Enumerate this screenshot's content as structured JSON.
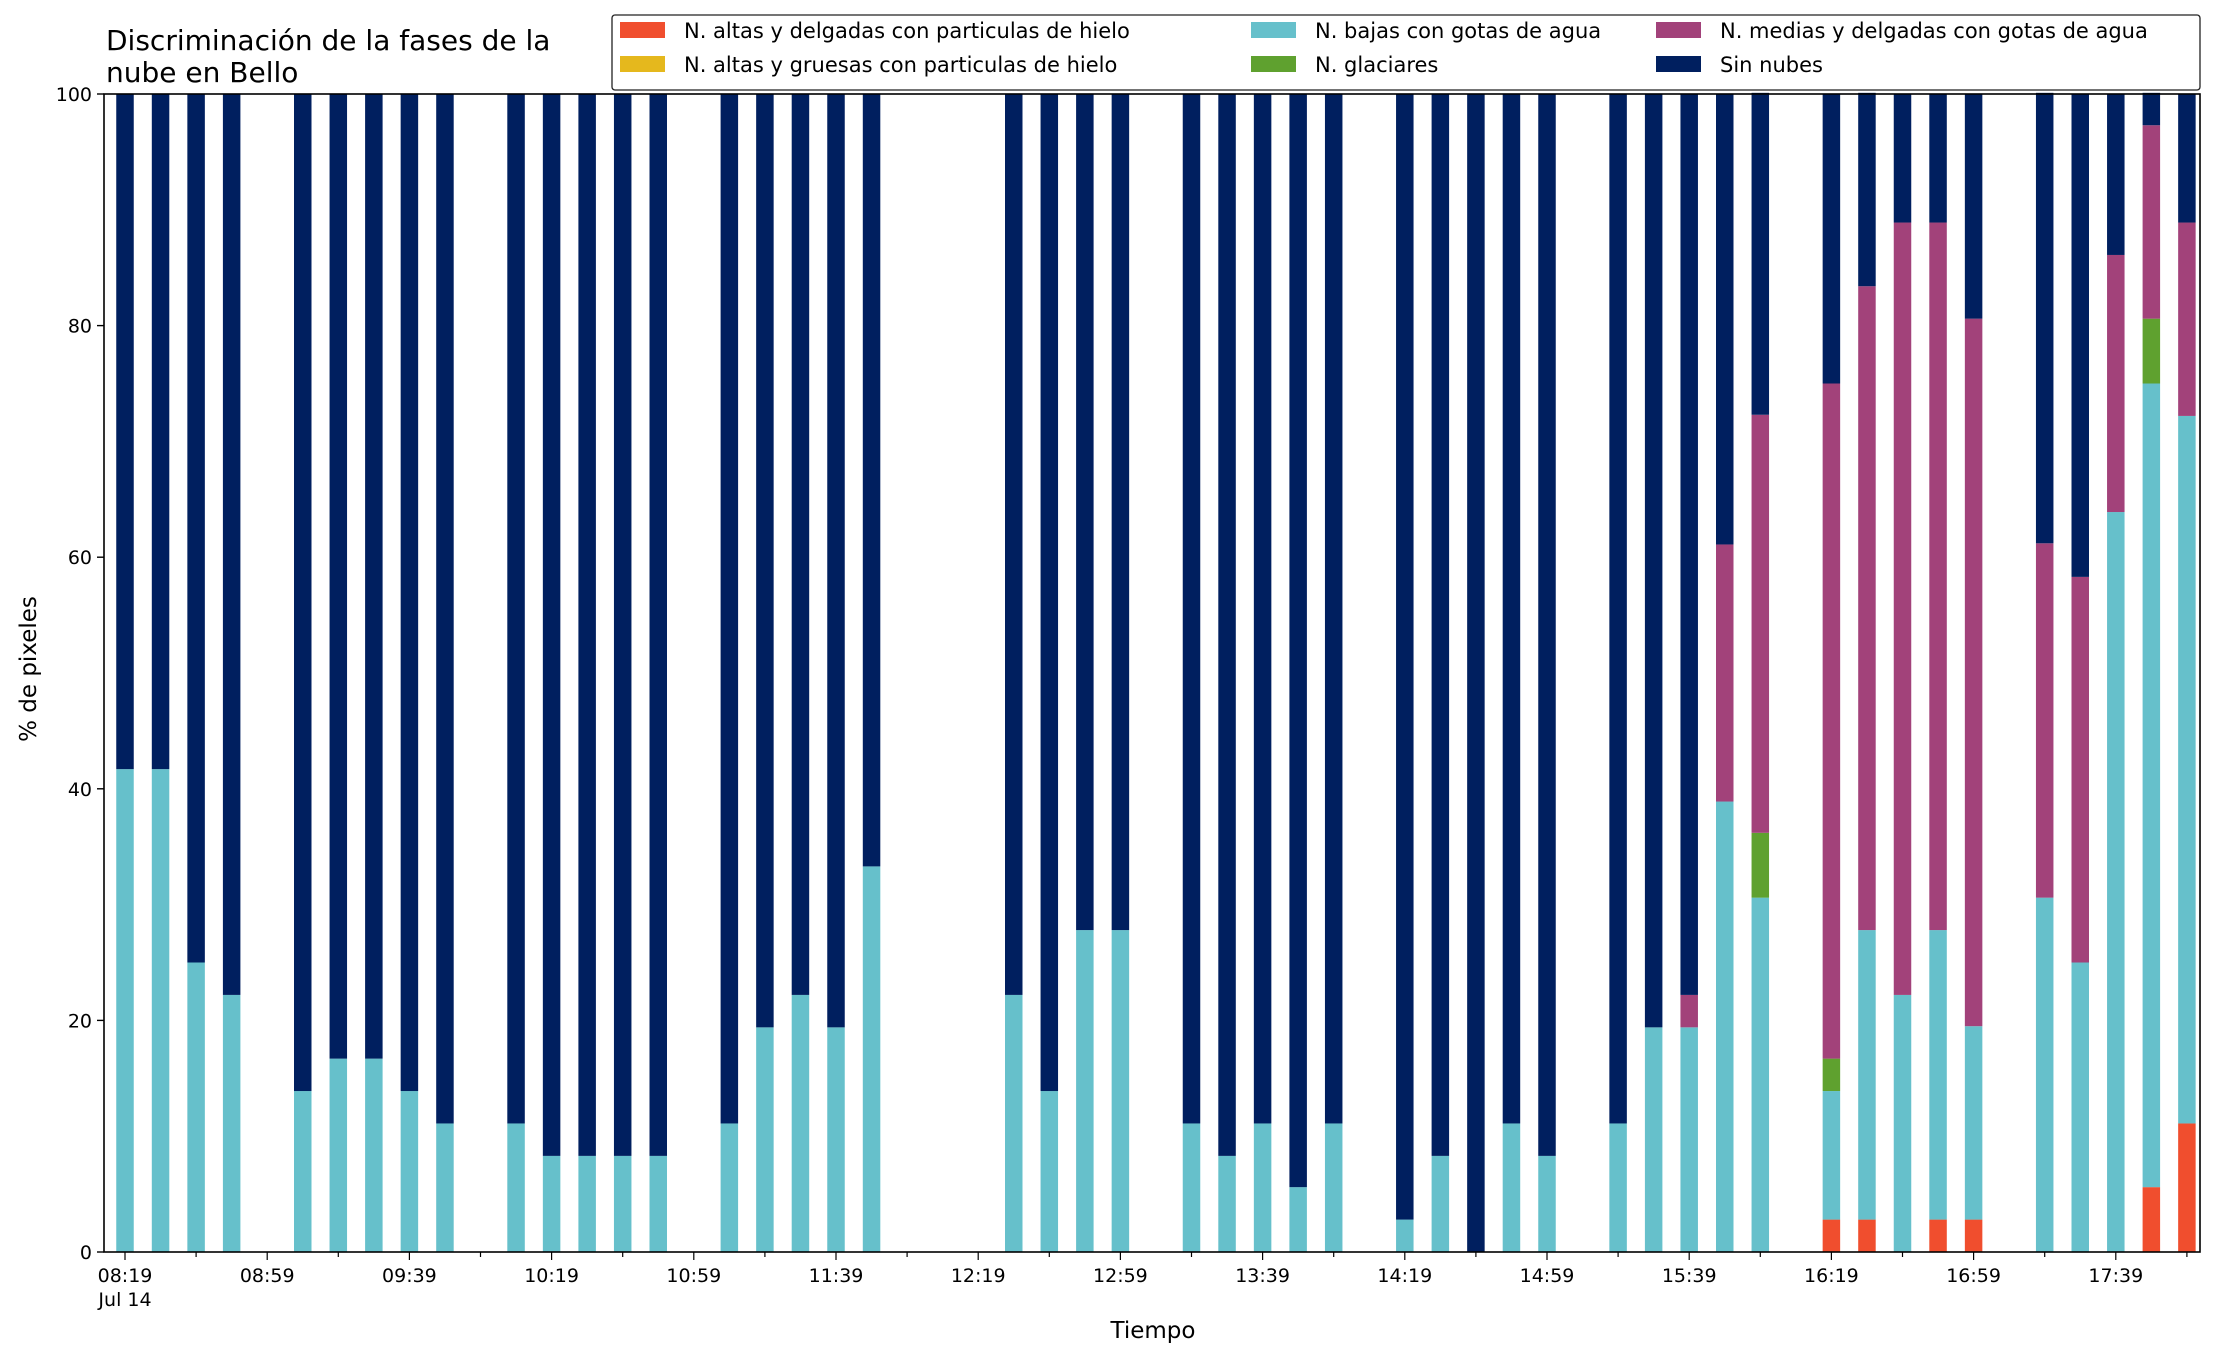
{
  "chart_data": {
    "type": "bar",
    "stacked": true,
    "title": "Discriminación de la fases de la\nnube en Bello",
    "xlabel": "Tiempo",
    "ylabel": "% de pixeles",
    "ylim": [
      0,
      100
    ],
    "yticks": [
      0,
      20,
      40,
      60,
      80,
      100
    ],
    "x_start": "08:19",
    "x_step_minutes": 10,
    "x_count": 59,
    "xtick_labels": [
      "08:19",
      "08:59",
      "09:39",
      "10:19",
      "10:59",
      "11:39",
      "12:19",
      "12:59",
      "13:39",
      "14:19",
      "14:59",
      "15:39",
      "16:19",
      "16:59",
      "17:39"
    ],
    "xtick_sublabel": "Jul 14",
    "grid": false,
    "legend": "top-right",
    "series": [
      {
        "name": "N. altas y delgadas con particulas de hielo",
        "color": "#f04e2e",
        "values": [
          0,
          0,
          0,
          0,
          null,
          0,
          0,
          0,
          0,
          0,
          null,
          0,
          0,
          0,
          0,
          0,
          null,
          0,
          0,
          0,
          0,
          0,
          null,
          null,
          null,
          0,
          0,
          0,
          0,
          null,
          0,
          0,
          0,
          0,
          0,
          null,
          0,
          0,
          0,
          0,
          0,
          null,
          0,
          0,
          0,
          0,
          0,
          null,
          2.8,
          2.8,
          0,
          2.8,
          2.8,
          null,
          0,
          0,
          0,
          5.6,
          11.1
        ]
      },
      {
        "name": "N. altas y gruesas con particulas de hielo",
        "color": "#e5b81d",
        "values": [
          0,
          0,
          0,
          0,
          null,
          0,
          0,
          0,
          0,
          0,
          null,
          0,
          0,
          0,
          0,
          0,
          null,
          0,
          0,
          0,
          0,
          0,
          null,
          null,
          null,
          0,
          0,
          0,
          0,
          null,
          0,
          0,
          0,
          0,
          0,
          null,
          0,
          0,
          0,
          0,
          0,
          null,
          0,
          0,
          0,
          0,
          0,
          null,
          0,
          0,
          0,
          0,
          0,
          null,
          0,
          0,
          0,
          0,
          0
        ]
      },
      {
        "name": "N. bajas con gotas de agua",
        "color": "#66c0cb",
        "values": [
          41.7,
          41.7,
          25,
          22.2,
          null,
          13.9,
          16.7,
          16.7,
          13.9,
          11.1,
          null,
          11.1,
          8.3,
          8.3,
          8.3,
          8.3,
          null,
          11.1,
          19.4,
          22.2,
          19.4,
          33.3,
          null,
          null,
          null,
          22.2,
          13.9,
          27.8,
          27.8,
          null,
          11.1,
          8.3,
          11.1,
          5.6,
          11.1,
          null,
          2.8,
          8.3,
          0,
          11.1,
          8.3,
          null,
          11.1,
          19.4,
          19.4,
          38.9,
          30.6,
          null,
          11.1,
          25,
          22.2,
          25,
          16.7,
          null,
          30.6,
          25,
          63.9,
          69.4,
          61.1
        ]
      },
      {
        "name": "N. glaciares",
        "color": "#5fa12f",
        "values": [
          0,
          0,
          0,
          0,
          null,
          0,
          0,
          0,
          0,
          0,
          null,
          0,
          0,
          0,
          0,
          0,
          null,
          0,
          0,
          0,
          0,
          0,
          null,
          null,
          null,
          0,
          0,
          0,
          0,
          null,
          0,
          0,
          0,
          0,
          0,
          null,
          0,
          0,
          0,
          0,
          0,
          null,
          0,
          0,
          0,
          0,
          5.6,
          null,
          2.8,
          0,
          0,
          0,
          0,
          null,
          0,
          0,
          0,
          5.6,
          0
        ]
      },
      {
        "name": "N. medias y delgadas con gotas de agua",
        "color": "#a2427a",
        "values": [
          0,
          0,
          0,
          0,
          null,
          0,
          0,
          0,
          0,
          0,
          null,
          0,
          0,
          0,
          0,
          0,
          null,
          0,
          0,
          0,
          0,
          0,
          null,
          null,
          null,
          0,
          0,
          0,
          0,
          null,
          0,
          0,
          0,
          0,
          0,
          null,
          0,
          0,
          0,
          0,
          0,
          null,
          0,
          0,
          2.8,
          22.2,
          36.1,
          null,
          58.3,
          55.6,
          66.7,
          61.1,
          61.1,
          null,
          30.6,
          33.3,
          22.2,
          16.7,
          16.7
        ]
      },
      {
        "name": "Sin nubes",
        "color": "#001f5f",
        "values": [
          58.3,
          58.3,
          75,
          77.8,
          null,
          86.1,
          83.3,
          83.3,
          86.1,
          88.9,
          null,
          88.9,
          91.7,
          91.7,
          91.7,
          91.7,
          null,
          88.9,
          80.6,
          77.8,
          80.6,
          66.7,
          null,
          null,
          null,
          77.8,
          86.1,
          72.2,
          72.2,
          null,
          88.9,
          91.7,
          88.9,
          94.4,
          88.9,
          null,
          97.2,
          91.7,
          100,
          88.9,
          91.7,
          null,
          88.9,
          80.6,
          77.8,
          38.9,
          27.8,
          null,
          25,
          16.7,
          11.1,
          11.1,
          19.4,
          null,
          38.9,
          41.7,
          13.9,
          2.8,
          11.1
        ]
      }
    ]
  }
}
